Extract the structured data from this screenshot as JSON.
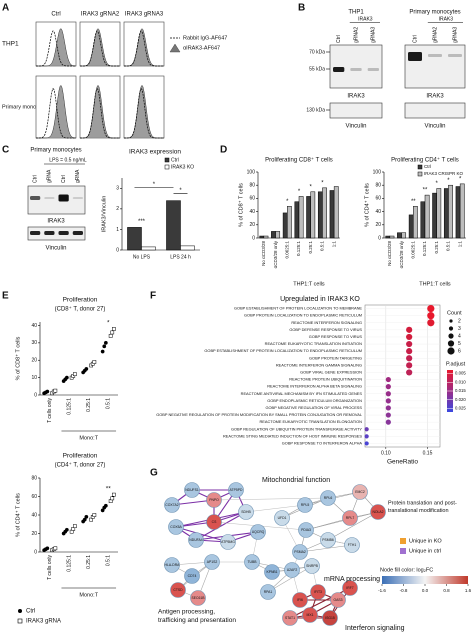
{
  "panel_labels": [
    "A",
    "B",
    "C",
    "D",
    "E",
    "F",
    "G"
  ],
  "panel_a": {
    "columns": [
      "Ctrl",
      "IRAK3 gRNA2",
      "IRAK3 gRNA3"
    ],
    "rows": [
      "THP1",
      "Primary mono"
    ],
    "legend": [
      "Rabbit IgG-AF647",
      "αIRAK3-AF647"
    ]
  },
  "panel_b": {
    "blots": [
      {
        "title": "THP1",
        "group": "IRAK3",
        "lanes": [
          "Ctrl",
          "gRNA2",
          "gRNA3"
        ]
      },
      {
        "title": "Primary monocytes",
        "group": "IRAK3",
        "lanes": [
          "Ctrl",
          "gRNA2",
          "gRNA3"
        ]
      }
    ],
    "markers": [
      "70 kDa",
      "55 kDa",
      "130 kDa"
    ],
    "protein": "IRAK3",
    "loading": "Vinculin"
  },
  "panel_c": {
    "blot": {
      "title": "Primary monocytes",
      "treatment": "LPS = 0.5 ng/mL",
      "lanes": [
        "Ctrl",
        "gRNA",
        "Ctrl",
        "gRNA"
      ],
      "protein": "IRAK3",
      "loading": "Vinculin"
    },
    "chart": {
      "type": "bar",
      "title": "IRAK3 expression",
      "y_label": "IRAK3/Vinculin",
      "categories": [
        "No LPS",
        "LPS 24 h"
      ],
      "series": [
        {
          "name": "Ctrl",
          "color": "#3a3a3a",
          "values": [
            1.1,
            2.4
          ]
        },
        {
          "name": "IRAK3 KO",
          "color": "#ffffff",
          "values": [
            0.15,
            0.2
          ]
        }
      ],
      "ylim": [
        0,
        3.5
      ],
      "yticks": [
        0,
        1,
        2,
        3
      ],
      "annotations": [
        "***",
        "*",
        "*"
      ]
    }
  },
  "panel_d": {
    "charts": [
      {
        "type": "bar",
        "title": "Proliferating CD8⁺ T cells",
        "y_label": "% of CD8⁺ T cells",
        "x_label": "THP1:T cells",
        "categories": [
          "No αCD3/28",
          "αCD3/28 only",
          "0.0625:1",
          "0.125:1",
          "0.25:1",
          "0.5:1",
          "1:1"
        ],
        "series": [
          {
            "color": "#3a3a3a",
            "values": [
              3,
              10,
              38,
              55,
              63,
              70,
              72
            ]
          },
          {
            "color": "#bdbdbd",
            "values": [
              3,
              10,
              48,
              63,
              70,
              76,
              78
            ]
          }
        ],
        "ylim": [
          0,
          100
        ],
        "yticks": [
          0,
          20,
          40,
          60,
          80,
          100
        ],
        "significance": [
          null,
          null,
          "*",
          "*",
          "*",
          "*",
          null
        ]
      },
      {
        "type": "bar",
        "title": "Proliferating CD4⁺ T cells",
        "y_label": "% of CD4⁺ T cells",
        "x_label": "THP1:T cells",
        "categories": [
          "No αCD3/28",
          "αCD3/28 only",
          "0.0625:1",
          "0.125:1",
          "0.25:1",
          "0.5:1",
          "1:1"
        ],
        "series": [
          {
            "name": "Ctrl",
            "color": "#3a3a3a",
            "values": [
              3,
              8,
              35,
              55,
              68,
              75,
              78
            ]
          },
          {
            "name": "IRAK3 CRISPR KO",
            "color": "#bdbdbd",
            "values": [
              3,
              8,
              48,
              65,
              75,
              80,
              82
            ]
          }
        ],
        "ylim": [
          0,
          100
        ],
        "yticks": [
          0,
          20,
          40,
          60,
          80,
          100
        ],
        "significance": [
          null,
          null,
          "**",
          "**",
          "*",
          "*",
          "*"
        ]
      }
    ]
  },
  "panel_e": {
    "charts": [
      {
        "type": "dot",
        "title": "Proliferation",
        "subtitle": "(CD8⁺ T, donor 27)",
        "y_label": "% of CD8⁺ T cells",
        "x_label": "Mono:T",
        "categories": [
          "T cells only",
          "0.125:1",
          "0.25:1",
          "0.5:1"
        ],
        "series": [
          {
            "color": "#000000",
            "marker": "circle",
            "values": [
              [
                1,
                1.5,
                2
              ],
              [
                8,
                9,
                10
              ],
              [
                13,
                14,
                15
              ],
              [
                25,
                28,
                30
              ]
            ]
          },
          {
            "color": "#ffffff",
            "marker": "square",
            "values": [
              [
                1,
                2,
                2.5
              ],
              [
                10,
                11,
                12
              ],
              [
                17,
                18,
                19
              ],
              [
                34,
                36,
                38
              ]
            ]
          }
        ],
        "ylim": [
          0,
          42
        ],
        "yticks": [
          0,
          10,
          20,
          30,
          40
        ],
        "significance": [
          null,
          null,
          null,
          "*"
        ]
      },
      {
        "type": "dot",
        "title": "Proliferation",
        "subtitle": "(CD4⁺ T, donor 27)",
        "y_label": "% of CD4⁺ T cells",
        "x_label": "Mono:T",
        "categories": [
          "T cells only",
          "0.125:1",
          "0.25:1",
          "0.5:1"
        ],
        "series": [
          {
            "name": "Ctrl",
            "color": "#000000",
            "marker": "circle",
            "values": [
              [
                2,
                3,
                4
              ],
              [
                20,
                22,
                24
              ],
              [
                33,
                35,
                38
              ],
              [
                45,
                48,
                50
              ]
            ]
          },
          {
            "name": "IRAK3 gRNA",
            "color": "#ffffff",
            "marker": "square",
            "values": [
              [
                2,
                3,
                4
              ],
              [
                22,
                25,
                28
              ],
              [
                35,
                38,
                40
              ],
              [
                55,
                58,
                62
              ]
            ]
          }
        ],
        "ylim": [
          0,
          80
        ],
        "yticks": [
          0,
          20,
          40,
          60,
          80
        ],
        "significance": [
          null,
          null,
          null,
          "**"
        ]
      }
    ]
  },
  "panel_f": {
    "type": "dot",
    "title": "Upregulated in IRAK3 KO",
    "x_label": "GeneRatio",
    "xlim": [
      0.075,
      0.165
    ],
    "xticks": [
      {
        "value": 0.1,
        "label": "0.10"
      },
      0.15
    ],
    "terms": [
      {
        "term": "GOBP ESTABLISHMENT OF PROTEIN LOCALIZATION TO MEMBRANE",
        "gene_ratio": 0.154,
        "count": 6,
        "color": "#e8182c"
      },
      {
        "term": "GOBP PROTEIN LOCALIZATION TO ENDOPLASMIC RETICULUM",
        "gene_ratio": 0.154,
        "count": 6,
        "color": "#e8182c"
      },
      {
        "term": "REACTOME INTERFERON SIGNALING",
        "gene_ratio": 0.154,
        "count": 6,
        "color": "#e01a30"
      },
      {
        "term": "GOBP DEFENSE RESPONSE TO VIRUS",
        "gene_ratio": 0.128,
        "count": 5,
        "color": "#d21c3c"
      },
      {
        "term": "GOBP RESPONSE TO VIRUS",
        "gene_ratio": 0.128,
        "count": 5,
        "color": "#d21c3c"
      },
      {
        "term": "REACTOME EUKARYOTIC TRANSLATION INITIATION",
        "gene_ratio": 0.128,
        "count": 5,
        "color": "#c81e48"
      },
      {
        "term": "GOBP ESTABLISHMENT OF PROTEIN LOCALIZATION TO ENDOPLASMIC RETICULUM",
        "gene_ratio": 0.128,
        "count": 5,
        "color": "#c81e48"
      },
      {
        "term": "GOBP PROTEIN TARGETING",
        "gene_ratio": 0.128,
        "count": 5,
        "color": "#c32050"
      },
      {
        "term": "REACTOME INTERFERON GAMMA SIGNALING",
        "gene_ratio": 0.128,
        "count": 5,
        "color": "#c32050"
      },
      {
        "term": "GOBP VIRAL GENE EXPRESSION",
        "gene_ratio": 0.128,
        "count": 5,
        "color": "#be2256"
      },
      {
        "term": "REACTOME PROTEIN UBIQUITINATION",
        "gene_ratio": 0.103,
        "count": 4,
        "color": "#a02a80"
      },
      {
        "term": "REACTOME INTERFERON ALPHA BETA SIGNALING",
        "gene_ratio": 0.103,
        "count": 4,
        "color": "#9c2c86"
      },
      {
        "term": "REACTOME ANTIVIRAL MECHANISM BY IFN STIMULATED GENES",
        "gene_ratio": 0.103,
        "count": 4,
        "color": "#982e8a"
      },
      {
        "term": "GOBP ENDOPLASMIC RETICULUM ORGANIZATION",
        "gene_ratio": 0.103,
        "count": 4,
        "color": "#94308e"
      },
      {
        "term": "GOBP NEGATIVE REGULATION OF VIRAL PROCESS",
        "gene_ratio": 0.103,
        "count": 4,
        "color": "#903292"
      },
      {
        "term": "GOBP NEGATIVE REGULATION OF PROTEIN MODIFICATION BY SMALL PROTEIN CONJUGATION OR REMOVAL",
        "gene_ratio": 0.103,
        "count": 4,
        "color": "#8c3496"
      },
      {
        "term": "REACTOME EUKARYOTIC TRANSLATION ELONGATION",
        "gene_ratio": 0.103,
        "count": 4,
        "color": "#88369a"
      },
      {
        "term": "GOBP REGULATION OF UBIQUITIN PROTEIN TRANSFERASE ACTIVITY",
        "gene_ratio": 0.077,
        "count": 3,
        "color": "#6a3cb4"
      },
      {
        "term": "REACTOME STING MEDIATED INDUCTION OF HOST IMMUNE RESPONSES",
        "gene_ratio": 0.077,
        "count": 3,
        "color": "#5a40c4"
      },
      {
        "term": "GOBP RESPONSE TO INTERFERON ALPHA",
        "gene_ratio": 0.077,
        "count": 3,
        "color": "#4a44d4"
      }
    ],
    "count_title": "Count",
    "count_legend": [
      2,
      3,
      4,
      5,
      6
    ],
    "p_adjust_title": "P.adjust",
    "p_adjust_lim": [
      0.003,
      0.027
    ],
    "p_adjust_ticks": [
      0.005,
      {
        "value": 0.01,
        "label": "0.010"
      },
      0.015,
      {
        "value": 0.02,
        "label": "0.020"
      },
      0.025
    ]
  },
  "panel_g": {
    "clusters": [
      {
        "lines": [
          "Mitochondrial function"
        ],
        "color": "#7b2fa6"
      },
      {
        "lines": [
          "Protein translation and post-",
          "translational modification"
        ],
        "color": "#d24fc0"
      },
      {
        "lines": [
          "Antigen processing,",
          "trafficking and presentation"
        ],
        "color": "#c08a1e"
      },
      {
        "lines": [
          "mRNA processing"
        ],
        "color": "#3f9a3a"
      },
      {
        "lines": [
          "Interferon signaling"
        ],
        "color": "#7a1f2a"
      }
    ],
    "nodes": [
      {
        "label": "COX7A2",
        "color": "#a9c6e0"
      },
      {
        "label": "NDUFS1",
        "color": "#a9c6e0"
      },
      {
        "label": "PNPO",
        "color": "#e58a8a"
      },
      {
        "label": "ATP5PD",
        "color": "#a9c6e0"
      },
      {
        "label": "CS",
        "color": "#d9534f"
      },
      {
        "label": "SDHB",
        "color": "#c9dbe9"
      },
      {
        "label": "COX5A",
        "color": "#a9c6e0"
      },
      {
        "label": "NDUFA4",
        "color": "#a9c6e0"
      },
      {
        "label": "ATP5MG",
        "color": "#c9dbe9"
      },
      {
        "label": "UQCRQ",
        "color": "#a9c6e0"
      },
      {
        "label": "UFD1",
        "color": "#c9dbe9"
      },
      {
        "label": "RPL5",
        "color": "#a9c6e0"
      },
      {
        "label": "RPL6",
        "color": "#a9c6e0"
      },
      {
        "label": "EMC2",
        "color": "#e8b3b0"
      },
      {
        "label": "RPL7",
        "color": "#e58a8a"
      },
      {
        "label": "NOLA2",
        "color": "#d9534f"
      },
      {
        "label": "PDIA3",
        "color": "#a9c6e0"
      },
      {
        "label": "PSMB6",
        "color": "#c9dbe9"
      },
      {
        "label": "PSMA2",
        "color": "#a9c6e0"
      },
      {
        "label": "FTH1",
        "color": "#c9dbe9"
      },
      {
        "label": "HLA-DRA",
        "color": "#a9c6e0"
      },
      {
        "label": "CD74",
        "color": "#8fb4d8"
      },
      {
        "label": "AP1S2",
        "color": "#a9c6e0"
      },
      {
        "label": "CTSD",
        "color": "#d9534f"
      },
      {
        "label": "SEC61B",
        "color": "#e58a8a"
      },
      {
        "label": "TUBB",
        "color": "#a9c6e0"
      },
      {
        "label": "KPNB1",
        "color": "#8fb4d8"
      },
      {
        "label": "U2AF2",
        "color": "#a9c6e0"
      },
      {
        "label": "SNRPB",
        "color": "#c9dbe9"
      },
      {
        "label": "RPA1",
        "color": "#a9c6e0"
      },
      {
        "label": "IFI6",
        "color": "#d9534f"
      },
      {
        "label": "IFIT3",
        "color": "#d9534f"
      },
      {
        "label": "OAS3",
        "color": "#e58a8a"
      },
      {
        "label": "MX1",
        "color": "#d9534f"
      },
      {
        "label": "ISG15",
        "color": "#c6443f"
      },
      {
        "label": "STAT1",
        "color": "#e58a8a"
      },
      {
        "label": "IRF7",
        "color": "#d9534f"
      }
    ],
    "legend": [
      {
        "label": "Unique in KO",
        "color": "#f0a030"
      },
      {
        "label": "Unique in ctrl",
        "color": "#a070d0"
      }
    ],
    "colorbar_title": "Node fill color: log₂FC",
    "colorbar_lim": [
      -1.6,
      1.6
    ],
    "colorbar_ticks": [
      -1.6,
      -0.8,
      {
        "value": 0,
        "label": "0.0"
      },
      0.8,
      1.6
    ]
  }
}
